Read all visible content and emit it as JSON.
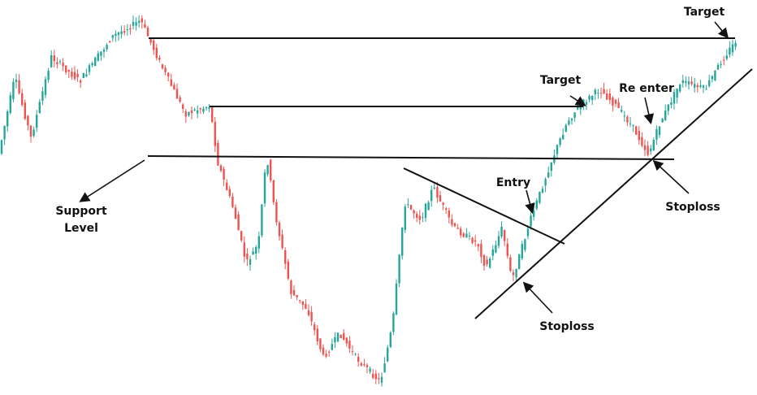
{
  "annotations": {
    "target_top": "Target",
    "target_mid": "Target",
    "re_enter": "Re enter",
    "entry": "Entry",
    "stoploss_right": "Stoploss",
    "stoploss_bottom": "Stoploss",
    "support_level": [
      "Support",
      "Level"
    ]
  }
}
